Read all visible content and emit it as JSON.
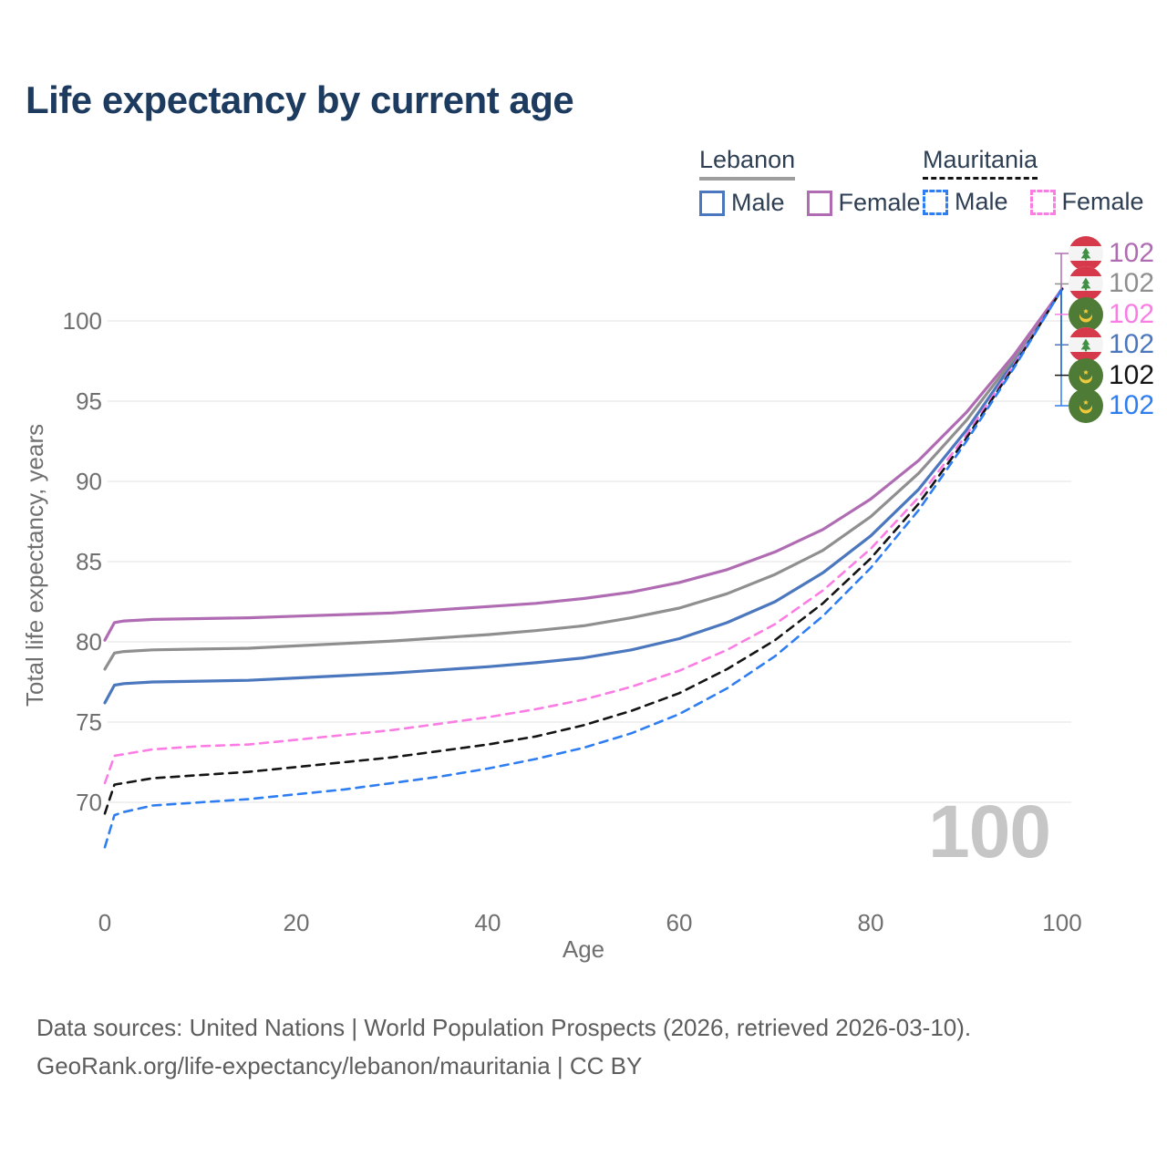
{
  "title": "Life expectancy by current age",
  "legend": {
    "groups": [
      {
        "label": "Lebanon",
        "dashed": false,
        "underline_color": "#9e9e9e",
        "items": [
          {
            "label": "Male",
            "color": "#4a77bd"
          },
          {
            "label": "Female",
            "color": "#b06cb3"
          }
        ]
      },
      {
        "label": "Mauritania",
        "dashed": true,
        "underline_color": "#141414",
        "items": [
          {
            "label": "Male",
            "color": "#2e7ef2"
          },
          {
            "label": "Female",
            "color": "#fb7de4"
          }
        ]
      }
    ]
  },
  "chart_data": {
    "type": "line",
    "title": "Life expectancy by current age",
    "xlabel": "Age",
    "ylabel": "Total life expectancy, years",
    "x_ticks": [
      0,
      20,
      40,
      60,
      80,
      100
    ],
    "y_ticks": [
      70,
      75,
      80,
      85,
      90,
      95,
      100
    ],
    "xlim": [
      0,
      100
    ],
    "ylim": [
      67,
      103
    ],
    "grid": "horizontal",
    "colors": {
      "grid": "#ebebeb",
      "tick_text": "#6f6f6f"
    },
    "ages": [
      0,
      1,
      2,
      5,
      10,
      15,
      20,
      25,
      30,
      35,
      40,
      45,
      50,
      55,
      60,
      65,
      70,
      75,
      80,
      85,
      90,
      95,
      100
    ],
    "series": [
      {
        "id": "lebanon-male",
        "name": "Lebanon Male",
        "country": "Lebanon",
        "sex": "Male",
        "color": "#4a77bd",
        "dash": "solid",
        "values": [
          76.2,
          77.3,
          77.4,
          77.5,
          77.55,
          77.6,
          77.75,
          77.9,
          78.05,
          78.25,
          78.45,
          78.7,
          79.0,
          79.5,
          80.2,
          81.2,
          82.5,
          84.3,
          86.6,
          89.5,
          93.2,
          97.5,
          102
        ],
        "value_at_100": 102
      },
      {
        "id": "lebanon-total",
        "name": "Lebanon (both sexes)",
        "country": "Lebanon",
        "sex": "Both",
        "color": "#8f8f8f",
        "dash": "solid",
        "values": [
          78.3,
          79.3,
          79.4,
          79.5,
          79.55,
          79.6,
          79.75,
          79.9,
          80.05,
          80.25,
          80.45,
          80.7,
          81.0,
          81.5,
          82.1,
          83.0,
          84.2,
          85.7,
          87.8,
          90.5,
          93.8,
          97.7,
          102
        ],
        "value_at_100": 102
      },
      {
        "id": "lebanon-female",
        "name": "Lebanon Female",
        "country": "Lebanon",
        "sex": "Female",
        "color": "#b06cb3",
        "dash": "solid",
        "values": [
          80.1,
          81.2,
          81.3,
          81.4,
          81.45,
          81.5,
          81.6,
          81.7,
          81.8,
          82.0,
          82.2,
          82.4,
          82.7,
          83.1,
          83.7,
          84.5,
          85.6,
          87.0,
          88.9,
          91.3,
          94.3,
          97.9,
          102
        ],
        "value_at_100": 102
      },
      {
        "id": "mauritania-female",
        "name": "Mauritania Female",
        "country": "Mauritania",
        "sex": "Female",
        "color": "#fb7de4",
        "dash": "dashed",
        "values": [
          71.2,
          72.9,
          73.0,
          73.3,
          73.5,
          73.6,
          73.9,
          74.2,
          74.5,
          74.9,
          75.3,
          75.8,
          76.4,
          77.2,
          78.2,
          79.5,
          81.1,
          83.2,
          85.8,
          89.0,
          92.9,
          97.3,
          102
        ],
        "value_at_100": 102
      },
      {
        "id": "mauritania-total",
        "name": "Mauritania (both sexes)",
        "country": "Mauritania",
        "sex": "Both",
        "color": "#141414",
        "dash": "dashed",
        "values": [
          69.3,
          71.1,
          71.2,
          71.5,
          71.7,
          71.9,
          72.2,
          72.5,
          72.8,
          73.2,
          73.6,
          74.1,
          74.8,
          75.7,
          76.8,
          78.3,
          80.1,
          82.4,
          85.2,
          88.6,
          92.7,
          97.2,
          102
        ],
        "value_at_100": 102
      },
      {
        "id": "mauritania-male",
        "name": "Mauritania Male",
        "country": "Mauritania",
        "sex": "Male",
        "color": "#2e7ef2",
        "dash": "dashed",
        "values": [
          67.2,
          69.2,
          69.4,
          69.8,
          70.0,
          70.2,
          70.5,
          70.8,
          71.2,
          71.6,
          72.1,
          72.7,
          73.4,
          74.3,
          75.5,
          77.1,
          79.1,
          81.6,
          84.6,
          88.2,
          92.5,
          97.1,
          102
        ],
        "value_at_100": 102
      }
    ],
    "end_labels": [
      {
        "flag": "lebanon-flag-icon",
        "value": "102",
        "color": "#b06cb3",
        "series": "lebanon-female"
      },
      {
        "flag": "lebanon-flag-icon",
        "value": "102",
        "color": "#8f8f8f",
        "series": "lebanon-total"
      },
      {
        "flag": "mauritania-flag-icon",
        "value": "102",
        "color": "#fb7de4",
        "series": "mauritania-female"
      },
      {
        "flag": "lebanon-flag-icon",
        "value": "102",
        "color": "#4a77bd",
        "series": "lebanon-male"
      },
      {
        "flag": "mauritania-flag-icon",
        "value": "102",
        "color": "#141414",
        "series": "mauritania-total"
      },
      {
        "flag": "mauritania-flag-icon",
        "value": "102",
        "color": "#2e7ef2",
        "series": "mauritania-male"
      }
    ],
    "legend_position": "top-right"
  },
  "watermark": "100",
  "footer": {
    "line1": "Data sources: United Nations | World Population Prospects (2026, retrieved 2026-03-10).",
    "line2": "GeoRank.org/life-expectancy/lebanon/mauritania | CC BY"
  }
}
